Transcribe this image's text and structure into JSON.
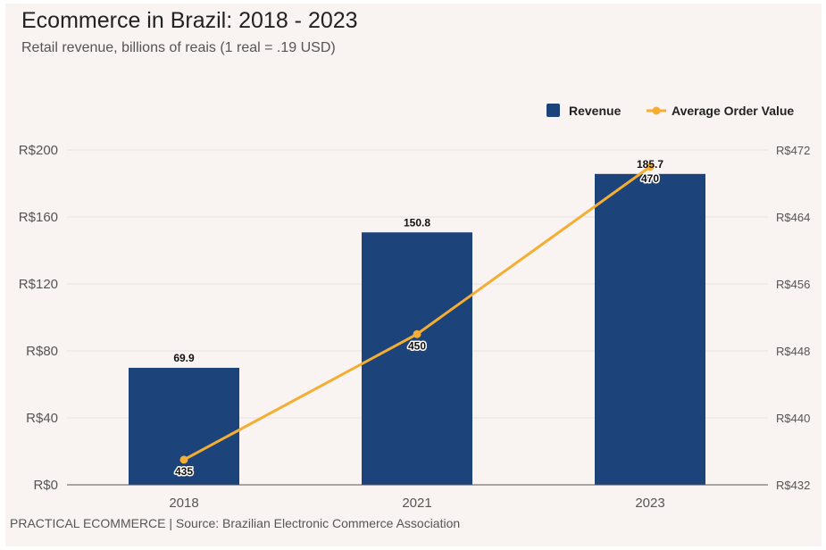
{
  "chart_data": {
    "type": "bar",
    "title": "Ecommerce in Brazil: 2018 - 2023",
    "subtitle": "Retail revenue, billions of reais (1 real = .19 USD)",
    "categories": [
      "2018",
      "2021",
      "2023"
    ],
    "series": [
      {
        "name": "Revenue",
        "type": "bar",
        "axis": "left",
        "values": [
          69.9,
          150.8,
          185.7
        ],
        "labels": [
          "69.9",
          "150.8",
          "185.7"
        ],
        "color": "#1c437a"
      },
      {
        "name": "Average Order Value",
        "type": "line",
        "axis": "right",
        "values": [
          435,
          450,
          470
        ],
        "labels": [
          "435",
          "450",
          "470"
        ],
        "color": "#f3ae33"
      }
    ],
    "y_left": {
      "min": 0,
      "max": 200,
      "ticks": [
        "R$0",
        "R$40",
        "R$80",
        "R$120",
        "R$160",
        "R$200"
      ]
    },
    "y_right": {
      "min": 432,
      "max": 472,
      "ticks": [
        "R$432",
        "R$440",
        "R$448",
        "R$456",
        "R$464",
        "R$472"
      ]
    },
    "legend_position": "top-right",
    "grid": true
  },
  "footer": "PRACTICAL ECOMMERCE | Source: Brazilian Electronic Commerce Association"
}
